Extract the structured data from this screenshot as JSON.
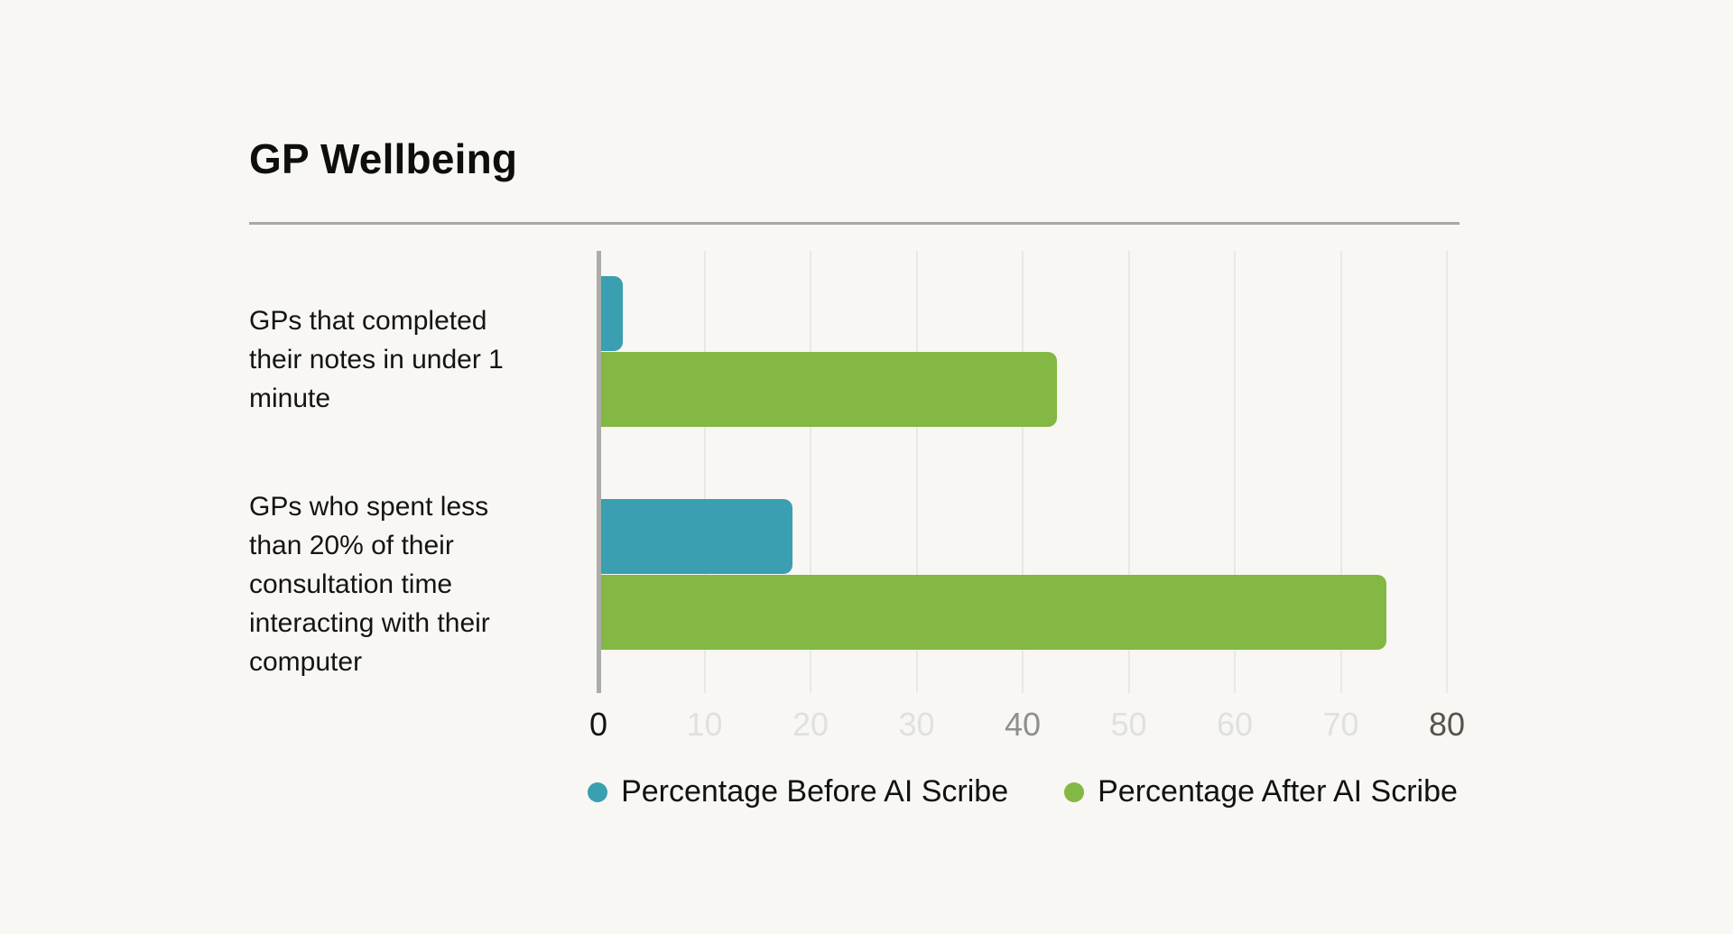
{
  "page": {
    "background": "#F8F7F4"
  },
  "header": {
    "title": "GP Wellbeing"
  },
  "chart_data": {
    "type": "bar",
    "orientation": "horizontal",
    "title": "GP Wellbeing",
    "categories": [
      "GPs that completed their notes in under 1 minute",
      "GPs who spent less than 20% of their consultation time interacting with their computer"
    ],
    "series": [
      {
        "name": "Percentage Before AI Scribe",
        "color": "#3A9FB0",
        "values": [
          2,
          18
        ]
      },
      {
        "name": "Percentage After AI Scribe",
        "color": "#82B843",
        "values": [
          43,
          74
        ]
      }
    ],
    "xlim": [
      0,
      80
    ],
    "xticks": [
      {
        "label": "0",
        "value": 0,
        "color": "#141414"
      },
      {
        "label": "10",
        "value": 10,
        "color": "#E0E0DD"
      },
      {
        "label": "20",
        "value": 20,
        "color": "#E0E0DD"
      },
      {
        "label": "30",
        "value": 30,
        "color": "#E0E0DD"
      },
      {
        "label": "40",
        "value": 40,
        "color": "#8F8F8C"
      },
      {
        "label": "50",
        "value": 50,
        "color": "#E0E0DD"
      },
      {
        "label": "60",
        "value": 60,
        "color": "#E0E0DD"
      },
      {
        "label": "70",
        "value": 70,
        "color": "#E0E0DD"
      },
      {
        "label": "80",
        "value": 80,
        "color": "#55544F"
      }
    ],
    "grid": true,
    "axis_line_color": "#ABABA7",
    "gridline_color": "#E8E8E4",
    "legend_position": "bottom"
  }
}
